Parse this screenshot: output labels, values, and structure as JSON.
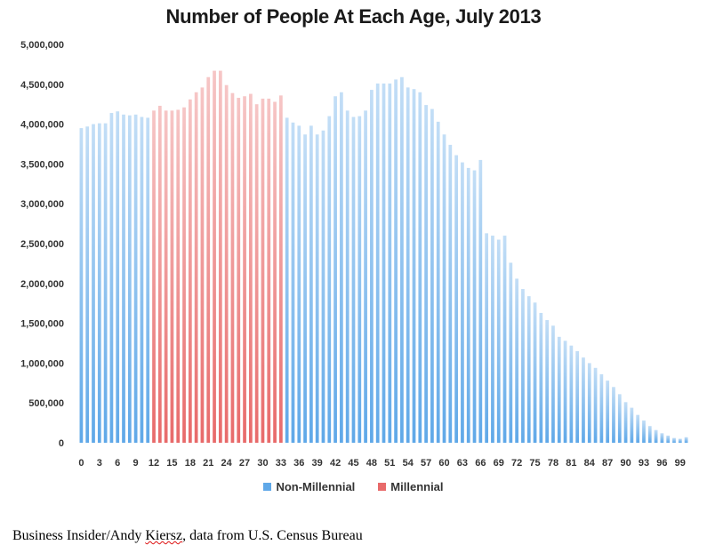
{
  "chart_data": {
    "type": "bar",
    "title": "Number of People At Each Age, July 2013",
    "xlabel": "",
    "ylabel": "",
    "ylim": [
      0,
      5000000
    ],
    "yticks": [
      0,
      500000,
      1000000,
      1500000,
      2000000,
      2500000,
      3000000,
      3500000,
      4000000,
      4500000,
      5000000
    ],
    "ytick_labels": [
      "0",
      "500,000",
      "1,000,000",
      "1,500,000",
      "2,000,000",
      "2,500,000",
      "3,000,000",
      "3,500,000",
      "4,000,000",
      "4,500,000",
      "5,000,000"
    ],
    "xtick_labels": [
      "0",
      "3",
      "6",
      "9",
      "12",
      "15",
      "18",
      "21",
      "24",
      "27",
      "30",
      "33",
      "36",
      "39",
      "42",
      "45",
      "48",
      "51",
      "54",
      "57",
      "60",
      "63",
      "66",
      "69",
      "72",
      "75",
      "78",
      "81",
      "84",
      "87",
      "90",
      "93",
      "96",
      "99"
    ],
    "ages": [
      0,
      1,
      2,
      3,
      4,
      5,
      6,
      7,
      8,
      9,
      10,
      11,
      12,
      13,
      14,
      15,
      16,
      17,
      18,
      19,
      20,
      21,
      22,
      23,
      24,
      25,
      26,
      27,
      28,
      29,
      30,
      31,
      32,
      33,
      34,
      35,
      36,
      37,
      38,
      39,
      40,
      41,
      42,
      43,
      44,
      45,
      46,
      47,
      48,
      49,
      50,
      51,
      52,
      53,
      54,
      55,
      56,
      57,
      58,
      59,
      60,
      61,
      62,
      63,
      64,
      65,
      66,
      67,
      68,
      69,
      70,
      71,
      72,
      73,
      74,
      75,
      76,
      77,
      78,
      79,
      80,
      81,
      82,
      83,
      84,
      85,
      86,
      87,
      88,
      89,
      90,
      91,
      92,
      93,
      94,
      95,
      96,
      97,
      98,
      99,
      100
    ],
    "values": [
      3950000,
      3970000,
      4000000,
      4010000,
      4010000,
      4140000,
      4160000,
      4120000,
      4110000,
      4120000,
      4090000,
      4080000,
      4170000,
      4230000,
      4170000,
      4170000,
      4180000,
      4210000,
      4310000,
      4400000,
      4460000,
      4590000,
      4670000,
      4670000,
      4490000,
      4390000,
      4330000,
      4350000,
      4380000,
      4250000,
      4320000,
      4320000,
      4280000,
      4360000,
      4080000,
      4020000,
      3980000,
      3870000,
      3980000,
      3870000,
      3920000,
      4100000,
      4350000,
      4400000,
      4170000,
      4090000,
      4100000,
      4170000,
      4430000,
      4510000,
      4510000,
      4510000,
      4560000,
      4590000,
      4460000,
      4440000,
      4400000,
      4240000,
      4190000,
      4030000,
      3870000,
      3740000,
      3610000,
      3520000,
      3450000,
      3420000,
      3550000,
      2630000,
      2600000,
      2550000,
      2600000,
      2260000,
      2060000,
      1930000,
      1840000,
      1760000,
      1630000,
      1540000,
      1470000,
      1330000,
      1280000,
      1220000,
      1150000,
      1070000,
      1000000,
      940000,
      860000,
      780000,
      700000,
      610000,
      510000,
      440000,
      350000,
      280000,
      210000,
      160000,
      120000,
      90000,
      60000,
      50000,
      70000
    ],
    "millennial_range": [
      12,
      33
    ],
    "series": [
      {
        "name": "Non-Millennial",
        "color": "#5fa8e8",
        "color_light": "#c3def6"
      },
      {
        "name": "Millennial",
        "color": "#e86a6a",
        "color_light": "#f6c6c6"
      }
    ],
    "legend_position": "bottom-center",
    "grid": false
  },
  "legend": {
    "non_millennial": "Non-Millennial",
    "millennial": "Millennial"
  },
  "source": {
    "prefix": "Business Insider/Andy ",
    "author_last": "Kiersz",
    "suffix": ", data from U.S. Census Bureau"
  }
}
